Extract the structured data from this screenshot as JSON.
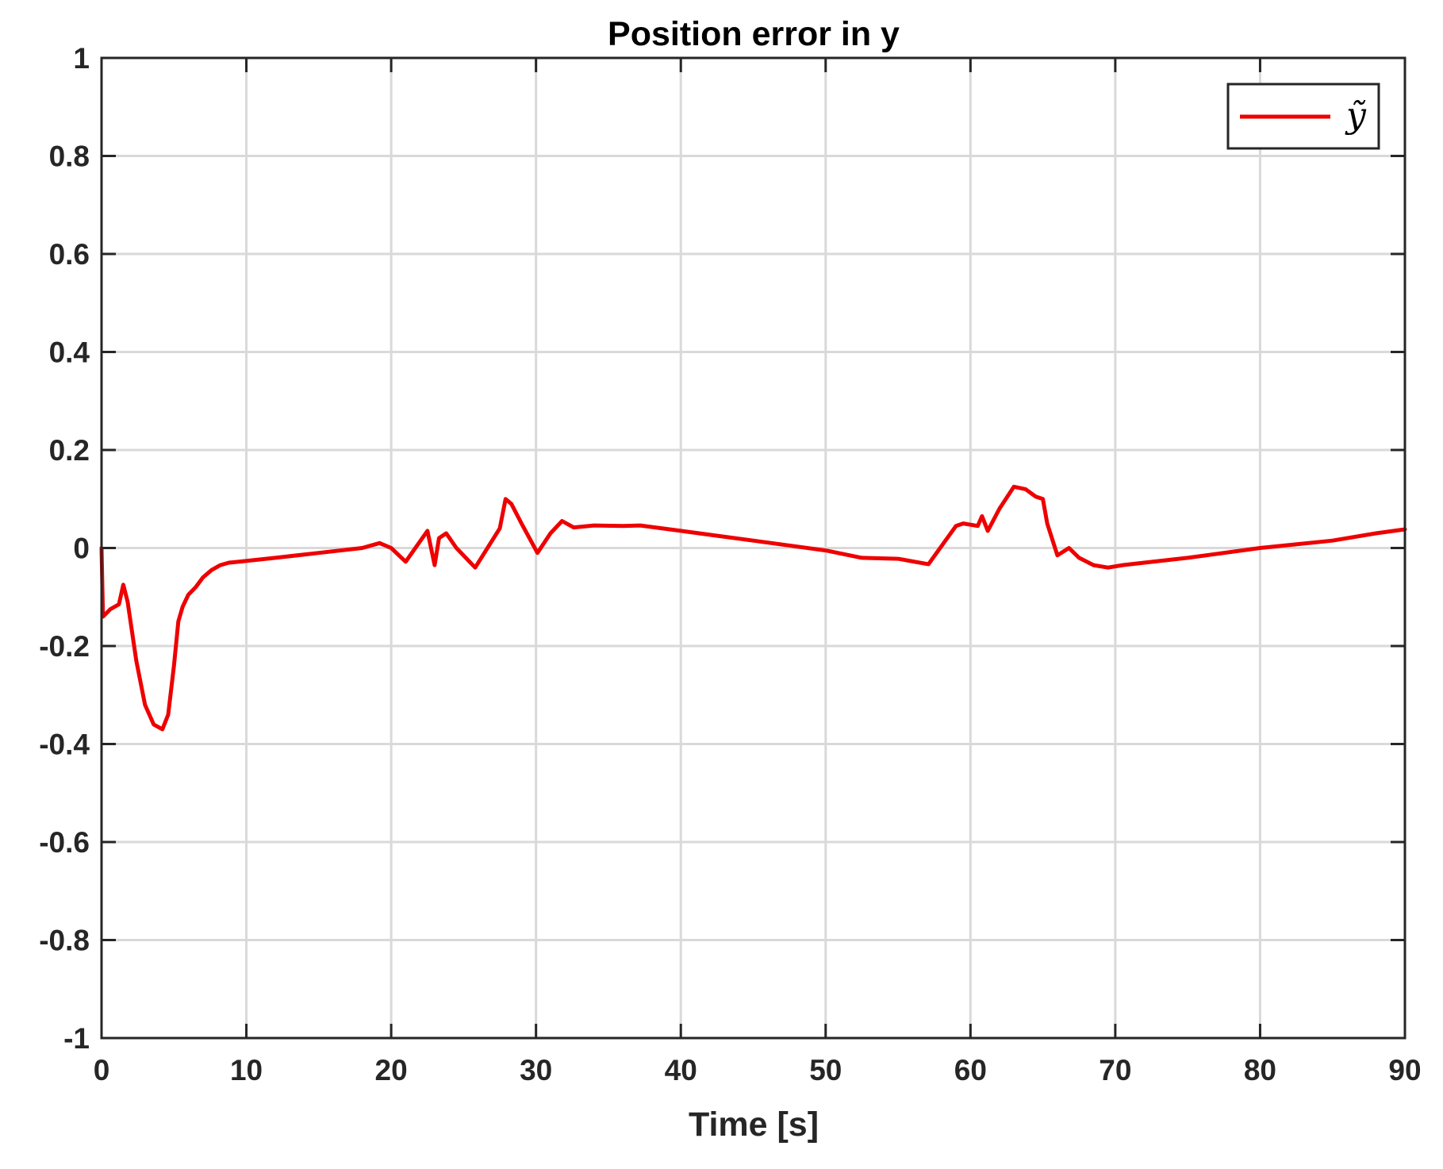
{
  "chart_data": {
    "type": "line",
    "title": "Position error in y",
    "xlabel": "Time [s]",
    "ylabel": "",
    "xlim": [
      0,
      90
    ],
    "ylim": [
      -1,
      1
    ],
    "xticks": [
      0,
      10,
      20,
      30,
      40,
      50,
      60,
      70,
      80,
      90
    ],
    "yticks": [
      -1,
      -0.8,
      -0.6,
      -0.4,
      -0.2,
      0,
      0.2,
      0.4,
      0.6,
      0.8,
      1
    ],
    "xtick_labels": [
      "0",
      "10",
      "20",
      "30",
      "40",
      "50",
      "60",
      "70",
      "80",
      "90"
    ],
    "ytick_labels": [
      "-1",
      "-0.8",
      "-0.6",
      "-0.4",
      "-0.2",
      "0",
      "0.2",
      "0.4",
      "0.6",
      "0.8",
      "1"
    ],
    "grid": true,
    "legend_position": "top-right",
    "colors": {
      "line": "#ee0000",
      "axes": "#262626",
      "grid": "#d9d9d9"
    },
    "series": [
      {
        "name": "ỹ",
        "x": [
          0,
          0.1,
          0.6,
          1.2,
          1.5,
          1.8,
          2.4,
          3.0,
          3.6,
          4.2,
          4.6,
          5.0,
          5.3,
          5.6,
          6.0,
          6.5,
          7.0,
          7.6,
          8.2,
          8.8,
          9.5,
          12,
          15,
          18,
          19.2,
          20,
          21,
          22.5,
          23.0,
          23.3,
          23.8,
          24.5,
          25.8,
          27.5,
          27.9,
          28.3,
          29,
          30.1,
          31,
          31.8,
          32.6,
          34,
          36,
          37.2,
          40,
          45,
          50,
          52.5,
          55,
          57.1,
          59,
          59.5,
          60.5,
          60.8,
          61.2,
          62,
          63,
          63.8,
          64.5,
          65,
          65.3,
          66.0,
          66.8,
          67.5,
          68.5,
          69.5,
          70.5,
          72,
          75,
          80,
          85,
          88,
          90
        ],
        "y": [
          0.0,
          -0.14,
          -0.125,
          -0.115,
          -0.075,
          -0.11,
          -0.23,
          -0.32,
          -0.36,
          -0.37,
          -0.34,
          -0.24,
          -0.15,
          -0.12,
          -0.095,
          -0.08,
          -0.06,
          -0.045,
          -0.035,
          -0.03,
          -0.028,
          -0.02,
          -0.01,
          0.0,
          0.01,
          0.0,
          -0.028,
          0.035,
          -0.035,
          0.02,
          0.03,
          0.0,
          -0.04,
          0.04,
          0.1,
          0.09,
          0.05,
          -0.01,
          0.03,
          0.055,
          0.042,
          0.046,
          0.045,
          0.046,
          0.035,
          0.015,
          -0.005,
          -0.02,
          -0.022,
          -0.033,
          0.045,
          0.05,
          0.045,
          0.065,
          0.035,
          0.08,
          0.125,
          0.12,
          0.105,
          0.1,
          0.05,
          -0.015,
          0.0,
          -0.02,
          -0.035,
          -0.04,
          -0.035,
          -0.03,
          -0.02,
          0.0,
          0.015,
          0.03,
          0.038
        ]
      }
    ]
  }
}
